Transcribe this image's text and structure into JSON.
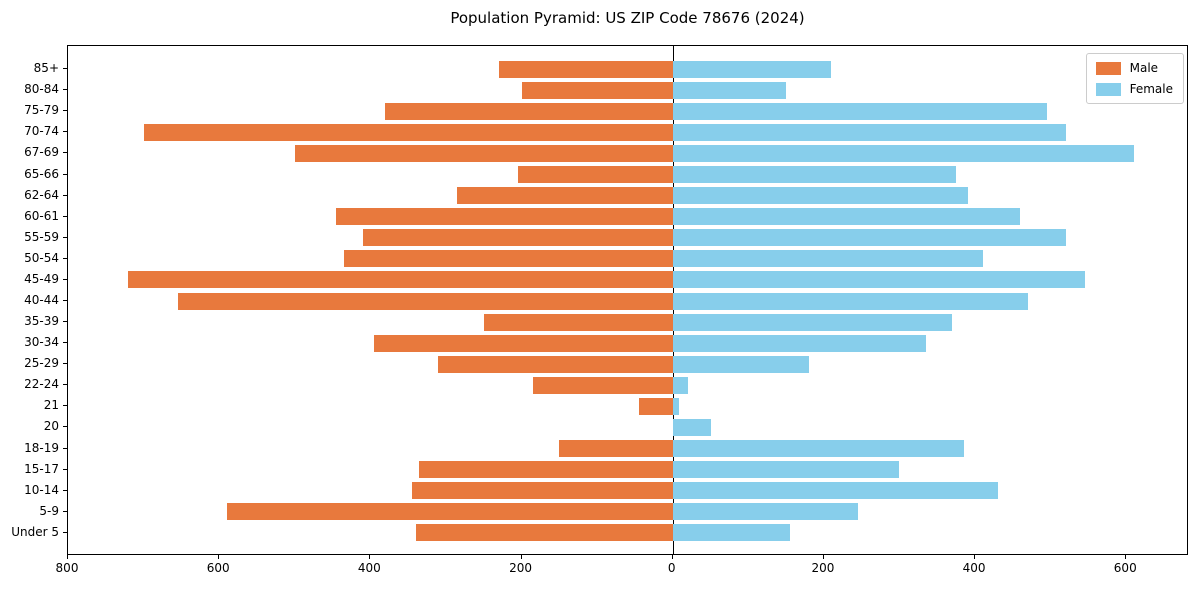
{
  "title": "Population Pyramid: US ZIP Code 78676 (2024)",
  "legend": {
    "male_label": "Male",
    "female_label": "Female"
  },
  "colors": {
    "male": "#E8793D",
    "female": "#87CEEB",
    "axis": "#000000"
  },
  "chart_data": {
    "type": "bar",
    "subtype": "population-pyramid-horizontal",
    "title": "Population Pyramid: US ZIP Code 78676 (2024)",
    "categories_top_to_bottom": [
      "85+",
      "80-84",
      "75-79",
      "70-74",
      "67-69",
      "65-66",
      "62-64",
      "60-61",
      "55-59",
      "50-54",
      "45-49",
      "40-44",
      "35-39",
      "30-34",
      "25-29",
      "22-24",
      "21",
      "20",
      "18-19",
      "15-17",
      "10-14",
      "5-9",
      "Under 5"
    ],
    "series": [
      {
        "name": "Male",
        "side": "left",
        "values": [
          230,
          200,
          380,
          700,
          500,
          205,
          285,
          445,
          410,
          435,
          720,
          655,
          250,
          395,
          310,
          185,
          45,
          0,
          150,
          335,
          345,
          590,
          340
        ]
      },
      {
        "name": "Female",
        "side": "right",
        "values": [
          210,
          150,
          495,
          520,
          610,
          375,
          390,
          460,
          520,
          410,
          545,
          470,
          370,
          335,
          180,
          20,
          8,
          50,
          385,
          300,
          430,
          245,
          155
        ]
      }
    ],
    "xlim": [
      -800,
      683
    ],
    "x_ticks": [
      -800,
      -600,
      -400,
      -200,
      0,
      200,
      400,
      600
    ],
    "x_tick_labels": [
      "800",
      "600",
      "400",
      "200",
      "0",
      "200",
      "400",
      "600"
    ],
    "grid": "off",
    "legend_position": "upper-right",
    "zero_line": true
  }
}
